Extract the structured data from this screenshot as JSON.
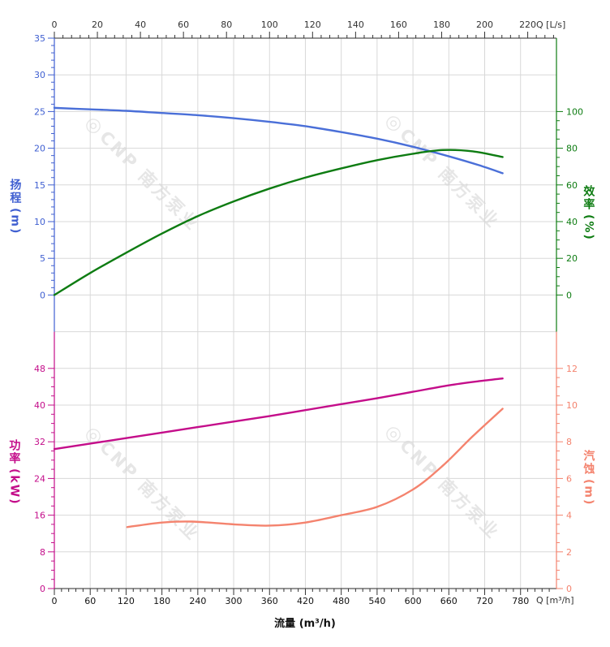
{
  "watermark": {
    "logo": "◎",
    "text": "CNP 南方泵业"
  },
  "chart_data": {
    "type": "line",
    "title": "",
    "grid": true,
    "x_axis": {
      "label": "流量 (m³/h)",
      "bottom_unit_label": "Q [m³/h]",
      "top_unit_label": "Q [L/s]",
      "bottom_ticks": [
        0,
        60,
        120,
        180,
        240,
        300,
        360,
        420,
        480,
        540,
        600,
        660,
        720,
        780
      ],
      "bottom_minor_step": 12,
      "top_ticks": [
        0,
        20,
        40,
        60,
        80,
        100,
        120,
        140,
        160,
        180,
        200,
        220
      ],
      "top_minor_step": 4,
      "range_m3h": [
        0,
        840
      ],
      "color": "#333333"
    },
    "panels": {
      "top": {
        "left_axis": {
          "name": "扬程",
          "unit": "(m)",
          "color": "#3f5fd1",
          "ticks": [
            0,
            5,
            10,
            15,
            20,
            25,
            30,
            35
          ],
          "minor_step": 1,
          "range": [
            0,
            35
          ]
        },
        "right_axis": {
          "name": "效率",
          "unit": "(%)",
          "color": "#0e7c12",
          "ticks": [
            0,
            20,
            40,
            60,
            80,
            100
          ],
          "minor_step": 5,
          "range": [
            0,
            100
          ]
        }
      },
      "bottom": {
        "left_axis": {
          "name": "功率",
          "unit": "(kW)",
          "color": "#c40d8a",
          "ticks": [
            0,
            8,
            16,
            24,
            32,
            40,
            48
          ],
          "minor_step": 2,
          "range": [
            0,
            48
          ]
        },
        "right_axis": {
          "name": "汽蚀",
          "unit": "(m)",
          "color": "#f4836e",
          "ticks": [
            0,
            2,
            4,
            6,
            8,
            10,
            12
          ],
          "minor_step": 0.5,
          "range": [
            0,
            12
          ]
        }
      }
    },
    "series": [
      {
        "id": "head",
        "axis": "head",
        "color": "#4a6fd8",
        "points": [
          [
            0,
            25.5
          ],
          [
            60,
            25.3
          ],
          [
            120,
            25.1
          ],
          [
            180,
            24.8
          ],
          [
            240,
            24.5
          ],
          [
            300,
            24.1
          ],
          [
            360,
            23.6
          ],
          [
            420,
            23.0
          ],
          [
            480,
            22.2
          ],
          [
            540,
            21.3
          ],
          [
            600,
            20.2
          ],
          [
            660,
            18.9
          ],
          [
            710,
            17.7
          ],
          [
            750,
            16.6
          ]
        ]
      },
      {
        "id": "efficiency",
        "axis": "eff",
        "color": "#0e7c12",
        "points": [
          [
            0,
            0
          ],
          [
            60,
            12
          ],
          [
            120,
            23
          ],
          [
            180,
            33.5
          ],
          [
            240,
            43
          ],
          [
            300,
            51
          ],
          [
            360,
            58
          ],
          [
            420,
            64
          ],
          [
            480,
            69
          ],
          [
            540,
            73.5
          ],
          [
            600,
            77
          ],
          [
            650,
            79
          ],
          [
            700,
            78.3
          ],
          [
            750,
            75.2
          ]
        ]
      },
      {
        "id": "power",
        "axis": "power",
        "color": "#c40d8a",
        "points": [
          [
            0,
            30.4
          ],
          [
            60,
            31.6
          ],
          [
            120,
            32.8
          ],
          [
            180,
            34.0
          ],
          [
            240,
            35.2
          ],
          [
            300,
            36.4
          ],
          [
            360,
            37.6
          ],
          [
            420,
            38.9
          ],
          [
            480,
            40.2
          ],
          [
            540,
            41.5
          ],
          [
            600,
            42.9
          ],
          [
            660,
            44.3
          ],
          [
            710,
            45.2
          ],
          [
            750,
            45.8
          ]
        ]
      },
      {
        "id": "npsh",
        "axis": "npsh",
        "color": "#f4836e",
        "points": [
          [
            122,
            3.35
          ],
          [
            180,
            3.6
          ],
          [
            230,
            3.65
          ],
          [
            300,
            3.5
          ],
          [
            360,
            3.43
          ],
          [
            420,
            3.6
          ],
          [
            480,
            4.0
          ],
          [
            540,
            4.45
          ],
          [
            600,
            5.4
          ],
          [
            650,
            6.7
          ],
          [
            700,
            8.3
          ],
          [
            750,
            9.8
          ]
        ]
      }
    ]
  }
}
